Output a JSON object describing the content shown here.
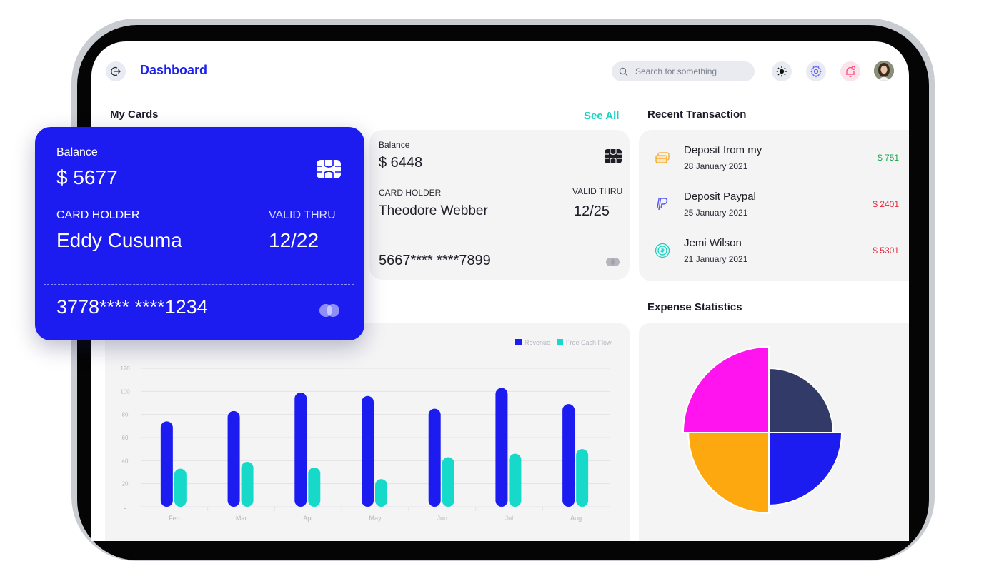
{
  "header": {
    "title": "Dashboard",
    "search_placeholder": "Search for something",
    "icons": [
      "logout-icon",
      "search-icon",
      "sun-icon",
      "gear-icon",
      "bell-icon",
      "avatar"
    ]
  },
  "cards": {
    "title": "My Cards",
    "see_all": "See All",
    "items": [
      {
        "balance_label": "Balance",
        "balance": "$ 5677",
        "holder_label": "CARD HOLDER",
        "holder": "Eddy Cusuma",
        "valid_label": "VALID THRU",
        "valid": "12/22",
        "number": "3778**** ****1234",
        "color": "#1c1cf0"
      },
      {
        "balance_label": "Balance",
        "balance": "$ 6448",
        "holder_label": "CARD HOLDER",
        "holder": "Theodore Webber",
        "valid_label": "VALID THRU",
        "valid": "12/25",
        "number": "5667**** ****7899",
        "color": "#f4f4f5"
      }
    ]
  },
  "transactions": {
    "title": "Recent Transaction",
    "items": [
      {
        "title": "Deposit from my",
        "date": "28 January 2021",
        "amount": "$ 751",
        "amount_color": "#16a34a",
        "icon": "card-icon",
        "icon_bg": "#fde7c3",
        "icon_color": "#f5a623"
      },
      {
        "title": "Deposit Paypal",
        "date": "25 January 2021",
        "amount": "$ 2401",
        "amount_color": "#e5253a",
        "icon": "paypal-icon",
        "icon_bg": "#dcdcfb",
        "icon_color": "#5b5bf0"
      },
      {
        "title": "Jemi Wilson",
        "date": "21 January 2021",
        "amount": "$ 5301",
        "amount_color": "#e5253a",
        "icon": "coin-icon",
        "icon_bg": "#c8f3ec",
        "icon_color": "#16d0c0"
      }
    ]
  },
  "expense": {
    "title": "Expense Statistics"
  },
  "chart_data": [
    {
      "type": "bar",
      "categories": [
        "Feb",
        "Mar",
        "Apr",
        "May",
        "Jun",
        "Jul",
        "Aug"
      ],
      "series": [
        {
          "name": "Revenue",
          "values": [
            74,
            83,
            99,
            96,
            85,
            103,
            89
          ],
          "color": "#1c1cf0"
        },
        {
          "name": "Free Cash Flow",
          "values": [
            33,
            39,
            34,
            24,
            43,
            46,
            50
          ],
          "color": "#16d9c9"
        }
      ],
      "yticks": [
        0,
        20,
        40,
        60,
        80,
        100,
        120
      ],
      "ylim": [
        0,
        120
      ],
      "legend": "top-right",
      "grid": true
    },
    {
      "type": "pie",
      "series": [
        {
          "value": 25,
          "radius": 0.75,
          "color": "#323b67"
        },
        {
          "value": 25,
          "radius": 0.85,
          "color": "#1c1cf0"
        },
        {
          "value": 25,
          "radius": 0.94,
          "color": "#fca80e"
        },
        {
          "value": 25,
          "radius": 1.0,
          "color": "#ff14f0"
        }
      ]
    }
  ]
}
